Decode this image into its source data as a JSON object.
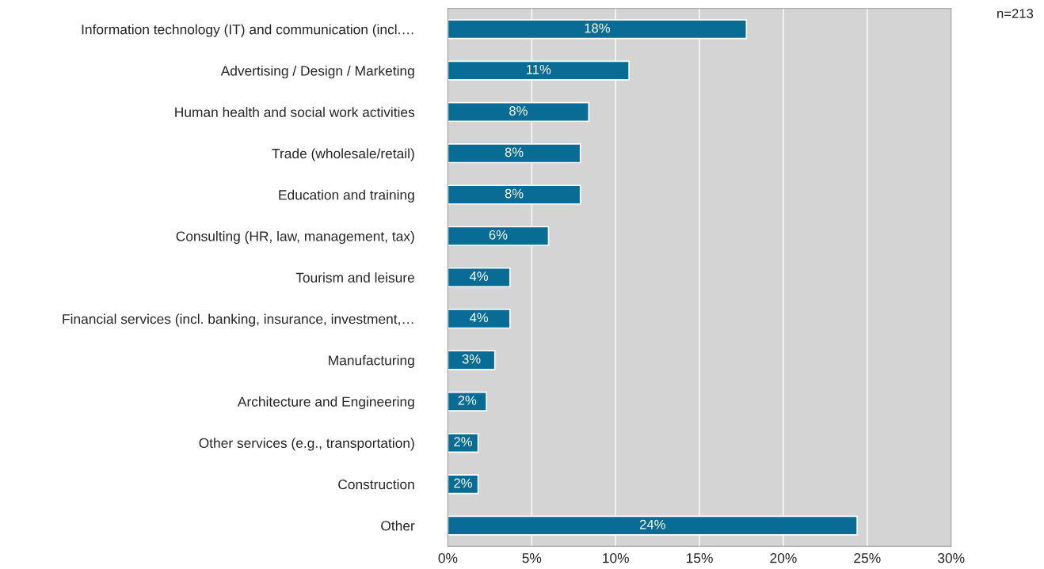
{
  "chart_data": {
    "type": "bar",
    "orientation": "horizontal",
    "categories": [
      "Information technology (IT) and communication (incl.…",
      "Advertising / Design / Marketing",
      "Human health and social work activities",
      "Trade (wholesale/retail)",
      "Education and training",
      "Consulting (HR, law, management, tax)",
      "Tourism and leisure",
      "Financial services (incl. banking, insurance, investment,…",
      "Manufacturing",
      "Architecture and Engineering",
      "Other services (e.g., transportation)",
      "Construction",
      "Other"
    ],
    "values": [
      17.8,
      10.8,
      8.4,
      7.9,
      7.9,
      6.0,
      3.7,
      3.7,
      2.8,
      2.3,
      1.8,
      1.8,
      24.4
    ],
    "value_labels": [
      "18%",
      "11%",
      "8%",
      "8%",
      "8%",
      "6%",
      "4%",
      "4%",
      "3%",
      "2%",
      "2%",
      "2%",
      "24%"
    ],
    "color": "#086c94",
    "xlim": [
      0,
      30
    ],
    "xticks": [
      {
        "value": 0,
        "label": "0%"
      },
      {
        "value": 5,
        "label": "5%"
      },
      {
        "value": 10,
        "label": "10%"
      },
      {
        "value": 15,
        "label": "15%"
      },
      {
        "value": 20,
        "label": "20%"
      },
      {
        "value": 25,
        "label": "25%"
      },
      {
        "value": 30,
        "label": "30%"
      }
    ],
    "grid": "x",
    "legend": false,
    "annotations": [
      "n=213"
    ]
  }
}
